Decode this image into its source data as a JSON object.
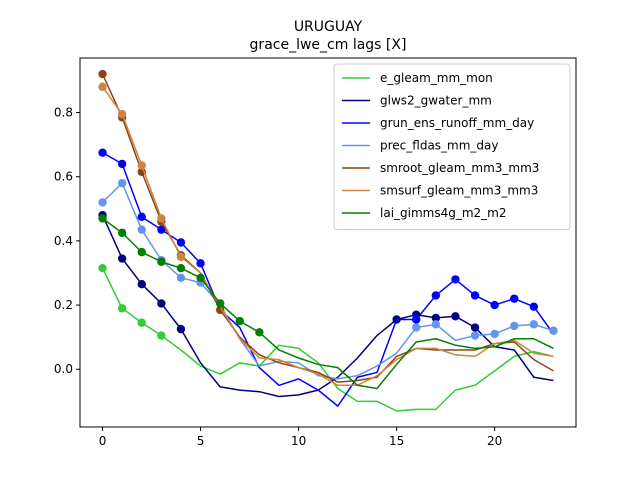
{
  "chart_data": {
    "type": "line",
    "title": "URUGUAY",
    "subtitle": "grace_lwe_cm lags [X]",
    "xlabel": "",
    "ylabel": "",
    "xlim": [
      -1.15,
      24.15
    ],
    "ylim": [
      -0.18,
      0.97
    ],
    "xticks": [
      0,
      5,
      10,
      15,
      20
    ],
    "yticks": [
      0.0,
      0.2,
      0.4,
      0.6,
      0.8
    ],
    "ytick_labels": [
      "0.0",
      "0.2",
      "0.4",
      "0.6",
      "0.8"
    ],
    "grid": false,
    "legend_position": "top-right",
    "x": [
      0,
      1,
      2,
      3,
      4,
      5,
      6,
      7,
      8,
      9,
      10,
      11,
      12,
      13,
      14,
      15,
      16,
      17,
      18,
      19,
      20,
      21,
      22,
      23
    ],
    "series": [
      {
        "name": "e_gleam_mm_mon",
        "color": "#32cd32",
        "values": [
          0.315,
          0.19,
          0.145,
          0.105,
          0.06,
          0.01,
          -0.015,
          0.02,
          0.01,
          0.075,
          0.065,
          0.02,
          -0.06,
          -0.1,
          -0.1,
          -0.13,
          -0.125,
          -0.125,
          -0.065,
          -0.05,
          -0.005,
          0.04,
          0.055,
          0.04
        ],
        "markers": [
          0,
          1,
          2,
          3
        ]
      },
      {
        "name": "glws2_gwater_mm",
        "color": "#000080",
        "values": [
          0.48,
          0.345,
          0.265,
          0.205,
          0.125,
          0.02,
          -0.055,
          -0.065,
          -0.07,
          -0.085,
          -0.08,
          -0.065,
          -0.025,
          0.035,
          0.105,
          0.155,
          0.17,
          0.16,
          0.165,
          0.13,
          0.07,
          0.06,
          -0.025,
          -0.035
        ],
        "markers": [
          0,
          1,
          2,
          3,
          4,
          15,
          16,
          17,
          18,
          19
        ]
      },
      {
        "name": "grun_ens_runoff_mm_day",
        "color": "#0000ff",
        "values": [
          0.675,
          0.64,
          0.475,
          0.435,
          0.395,
          0.33,
          0.185,
          0.13,
          0.005,
          -0.05,
          -0.03,
          -0.065,
          -0.115,
          -0.025,
          -0.01,
          0.155,
          0.155,
          0.23,
          0.28,
          0.23,
          0.2,
          0.22,
          0.195,
          0.11
        ],
        "markers": [
          0,
          1,
          2,
          3,
          4,
          5,
          16,
          17,
          18,
          19,
          20,
          21,
          22
        ]
      },
      {
        "name": "prec_fldas_mm_day",
        "color": "#6495ed",
        "values": [
          0.52,
          0.58,
          0.435,
          0.34,
          0.285,
          0.27,
          0.2,
          0.095,
          0.01,
          0.025,
          0.02,
          -0.02,
          -0.03,
          -0.02,
          0.01,
          0.05,
          0.13,
          0.14,
          0.09,
          0.105,
          0.11,
          0.135,
          0.14,
          0.12
        ],
        "markers": [
          0,
          1,
          2,
          3,
          4,
          5,
          16,
          17,
          19,
          20,
          21,
          22,
          23
        ]
      },
      {
        "name": "smroot_gleam_mm3_mm3",
        "color": "#8b4513",
        "values": [
          0.92,
          0.785,
          0.615,
          0.46,
          0.355,
          0.3,
          0.185,
          0.1,
          0.045,
          0.02,
          0.005,
          -0.01,
          -0.04,
          -0.035,
          -0.025,
          0.04,
          0.065,
          0.06,
          0.06,
          0.06,
          0.08,
          0.085,
          0.03,
          -0.005
        ],
        "markers": [
          0,
          1,
          2,
          3,
          4,
          6
        ]
      },
      {
        "name": "smsurf_gleam_mm3_mm3",
        "color": "#cd853f",
        "values": [
          0.88,
          0.795,
          0.635,
          0.47,
          0.35,
          0.3,
          0.195,
          0.095,
          0.035,
          0.03,
          0.005,
          -0.015,
          -0.05,
          -0.05,
          -0.02,
          0.03,
          0.065,
          0.065,
          0.045,
          0.04,
          0.08,
          0.09,
          0.05,
          0.04
        ],
        "markers": [
          0,
          1,
          2,
          3,
          4
        ]
      },
      {
        "name": "lai_gimms4g_m2_m2",
        "color": "#008000",
        "values": [
          0.47,
          0.425,
          0.365,
          0.335,
          0.315,
          0.285,
          0.205,
          0.15,
          0.115,
          0.06,
          0.035,
          0.015,
          0.005,
          -0.05,
          -0.06,
          0.015,
          0.085,
          0.095,
          0.075,
          0.065,
          0.07,
          0.095,
          0.095,
          0.065
        ],
        "markers": [
          0,
          1,
          2,
          3,
          4,
          5,
          6,
          7,
          8
        ]
      }
    ]
  }
}
